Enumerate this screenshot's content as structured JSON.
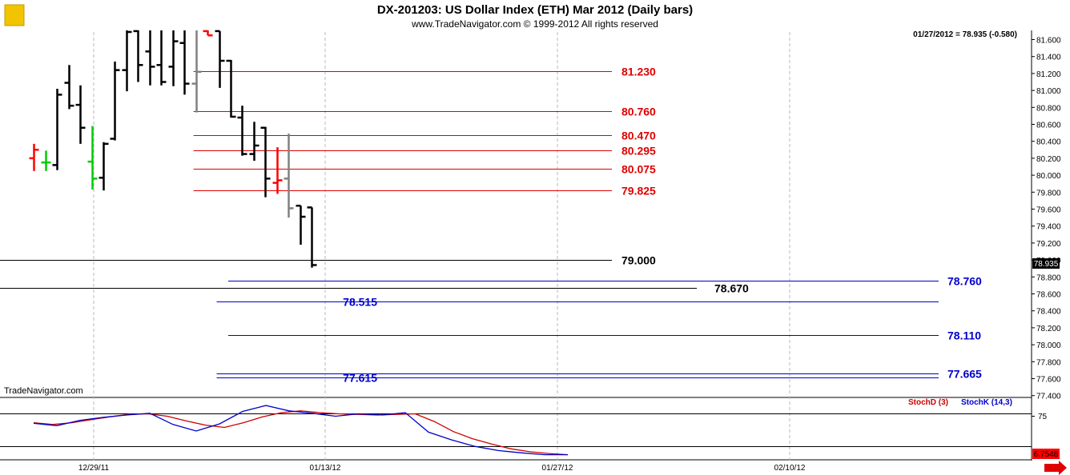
{
  "header": {
    "title": "DX-201203:  US Dollar Index (ETH) Mar 2012  (Daily bars)",
    "copyright": "www.TradeNavigator.com © 1999-2012 All rights reserved",
    "last_price_info": "01/27/2012 = 78.935 (-0.580)",
    "watermark": "TradeNavigator.com"
  },
  "colors": {
    "red_level": "#e00000",
    "blue_level": "#0000cc",
    "black_level": "#000000",
    "bar_up": "#00cc00",
    "bar_down": "#ff0000",
    "bar_flat": "#808080",
    "stoch_d": "#cc0000",
    "stoch_k": "#0000cc",
    "grid": "#b8b8b8"
  },
  "chart_data": [
    {
      "type": "ohlc",
      "y_axis_side": "right",
      "ylim": [
        77.35,
        81.75
      ],
      "y_ticks": [
        "81.600",
        "81.400",
        "81.200",
        "81.000",
        "80.800",
        "80.600",
        "80.400",
        "80.200",
        "80.000",
        "79.800",
        "79.600",
        "79.400",
        "79.200",
        "79.000",
        "78.800",
        "78.600",
        "78.400",
        "78.200",
        "78.000",
        "77.800",
        "77.600",
        "77.400"
      ],
      "x_ticks": [
        "12/29/11",
        "01/13/12",
        "01/27/12",
        "02/10/12"
      ],
      "last_price_label": "78.935",
      "bars": [
        {
          "o": 80.2,
          "h": 80.37,
          "l": 80.05,
          "c": 80.3,
          "color": "red"
        },
        {
          "o": 80.15,
          "h": 80.29,
          "l": 80.05,
          "c": 80.15,
          "color": "green"
        },
        {
          "o": 80.12,
          "h": 81.02,
          "l": 80.06,
          "c": 80.95,
          "color": "black"
        },
        {
          "o": 81.09,
          "h": 81.3,
          "l": 80.78,
          "c": 80.82,
          "color": "black"
        },
        {
          "o": 80.83,
          "h": 81.06,
          "l": 80.37,
          "c": 80.56,
          "color": "black"
        },
        {
          "o": 80.16,
          "h": 80.58,
          "l": 79.83,
          "c": 79.96,
          "color": "green"
        },
        {
          "o": 79.97,
          "h": 80.39,
          "l": 79.82,
          "c": 80.37,
          "color": "black"
        },
        {
          "o": 80.43,
          "h": 81.34,
          "l": 80.41,
          "c": 81.24,
          "color": "black"
        },
        {
          "o": 81.24,
          "h": 81.74,
          "l": 80.99,
          "c": 81.69,
          "color": "black"
        },
        {
          "o": 81.7,
          "h": 81.74,
          "l": 81.1,
          "c": 81.3,
          "color": "black"
        },
        {
          "o": 81.46,
          "h": 81.75,
          "l": 81.06,
          "c": 81.28,
          "color": "black"
        },
        {
          "o": 81.3,
          "h": 81.75,
          "l": 81.06,
          "c": 81.1,
          "color": "black"
        },
        {
          "o": 81.28,
          "h": 81.75,
          "l": 81.05,
          "c": 81.58,
          "color": "black"
        },
        {
          "o": 81.56,
          "h": 81.75,
          "l": 80.95,
          "c": 81.08,
          "color": "black"
        },
        {
          "o": 81.08,
          "h": 81.75,
          "l": 80.74,
          "c": 81.22,
          "color": "gray"
        },
        {
          "o": 81.7,
          "h": 81.74,
          "l": 81.65,
          "c": 81.65,
          "color": "red"
        },
        {
          "o": 81.7,
          "h": 81.7,
          "l": 81.03,
          "c": 81.35,
          "color": "black"
        },
        {
          "o": 81.35,
          "h": 81.36,
          "l": 80.68,
          "c": 80.69,
          "color": "black"
        },
        {
          "o": 80.68,
          "h": 80.82,
          "l": 80.23,
          "c": 80.25,
          "color": "black"
        },
        {
          "o": 80.25,
          "h": 80.63,
          "l": 80.17,
          "c": 80.35,
          "color": "black"
        },
        {
          "o": 80.56,
          "h": 80.57,
          "l": 79.74,
          "c": 79.96,
          "color": "black"
        },
        {
          "o": 79.91,
          "h": 80.33,
          "l": 79.78,
          "c": 79.94,
          "color": "red"
        },
        {
          "o": 79.96,
          "h": 80.49,
          "l": 79.5,
          "c": 79.61,
          "color": "gray"
        },
        {
          "o": 79.64,
          "h": 79.64,
          "l": 79.18,
          "c": 79.51,
          "color": "black"
        },
        {
          "o": 79.62,
          "h": 79.62,
          "l": 78.91,
          "c": 78.94,
          "color": "black"
        }
      ],
      "levels": [
        {
          "value": 81.23,
          "label": "81.230",
          "color": "red",
          "from_bar": 14
        },
        {
          "value": 80.76,
          "label": "80.760",
          "color": "red",
          "from_bar": 14
        },
        {
          "value": 80.47,
          "label": "80.470",
          "color": "red",
          "from_bar": 14
        },
        {
          "value": 80.295,
          "label": "80.295",
          "color": "red",
          "from_bar": 14
        },
        {
          "value": 80.075,
          "label": "80.075",
          "color": "red",
          "from_bar": 14
        },
        {
          "value": 79.825,
          "label": "79.825",
          "color": "red",
          "from_bar": 14
        },
        {
          "value": 79.0,
          "label": "79.000",
          "color": "black",
          "from_bar": -2
        },
        {
          "value": 78.67,
          "label": "78.670",
          "color": "black",
          "from_bar": -2
        },
        {
          "value": 78.76,
          "label": "78.760",
          "color": "blue",
          "from_bar": 16
        },
        {
          "value": 78.515,
          "label": "78.515",
          "color": "blue",
          "from_bar": 16
        },
        {
          "value": 78.11,
          "label": "78.110",
          "color": "blue",
          "from_bar": 16
        },
        {
          "value": 77.665,
          "label": "77.665",
          "color": "blue",
          "from_bar": 16
        },
        {
          "value": 77.615,
          "label": "77.615",
          "color": "blue",
          "from_bar": 16
        }
      ]
    },
    {
      "type": "line",
      "indicator": "stochastic",
      "ylim": [
        0,
        100
      ],
      "y_tick_label": "75",
      "last_value_label": "6.7548",
      "series": [
        {
          "name": "StochD (3)",
          "color": "red",
          "values": [
            60,
            57,
            60,
            65,
            70,
            74,
            75,
            71,
            63,
            56,
            52,
            60,
            70,
            77,
            80,
            77,
            75,
            74,
            73,
            74,
            75,
            62,
            45,
            33,
            24,
            16,
            11,
            8,
            6
          ]
        },
        {
          "name": "StochK (14,3)",
          "color": "blue",
          "values": [
            59,
            55,
            64,
            69,
            73,
            76,
            57,
            46,
            58,
            79,
            89,
            80,
            76,
            71,
            75,
            73,
            77,
            44,
            31,
            20,
            13,
            9,
            6,
            6
          ]
        }
      ]
    }
  ]
}
